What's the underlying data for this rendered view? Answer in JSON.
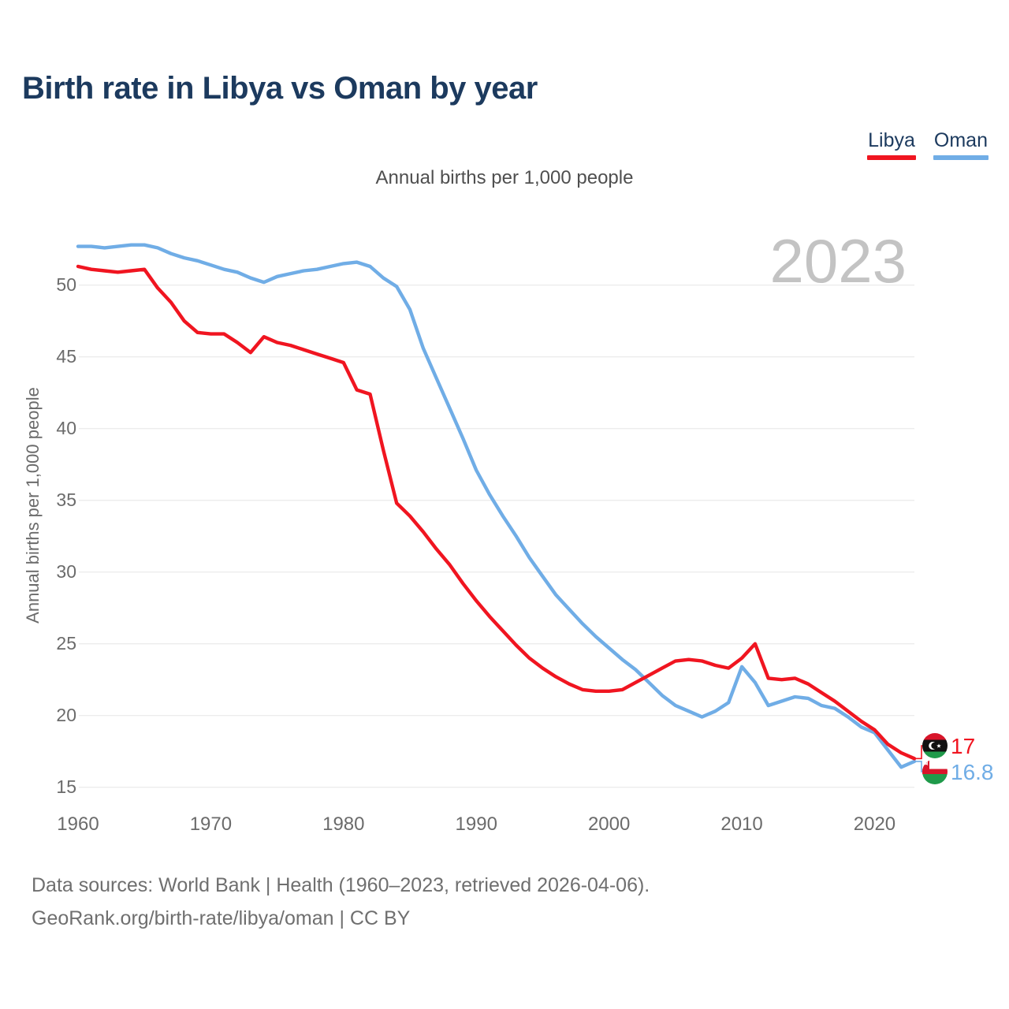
{
  "header": {
    "title": "Birth rate in Libya vs Oman by year"
  },
  "subtitle": "Annual births per 1,000 people",
  "watermark": "2023",
  "legend": {
    "items": [
      {
        "label": "Libya",
        "color": "#f01520"
      },
      {
        "label": "Oman",
        "color": "#70ade6"
      }
    ]
  },
  "footer": {
    "line1": "Data sources: World Bank | Health (1960–2023, retrieved 2026-04-06).",
    "line2": "GeoRank.org/birth-rate/libya/oman | CC BY"
  },
  "chart_data": {
    "type": "line",
    "title": "Birth rate in Libya vs Oman by year",
    "subtitle": "Annual births per 1,000 people",
    "xlabel": "",
    "ylabel": "Annual births per 1,000 people",
    "x_start": 1960,
    "x_end": 2023,
    "xticks": [
      1960,
      1970,
      1980,
      1990,
      2000,
      2010,
      2020
    ],
    "yticks": [
      15,
      20,
      25,
      30,
      35,
      40,
      45,
      50
    ],
    "ylim": [
      14.0,
      53.5
    ],
    "grid": true,
    "legend_position": "top-right",
    "gridline_color": "#ececec",
    "series": [
      {
        "name": "Libya",
        "color": "#f01520",
        "end_label": "17",
        "flag_icon": "libya-flag",
        "values": [
          51.3,
          51.1,
          51.0,
          50.9,
          51.0,
          51.1,
          49.8,
          48.8,
          47.5,
          46.7,
          46.6,
          46.6,
          46.0,
          45.3,
          46.4,
          46.0,
          45.8,
          45.5,
          45.2,
          44.9,
          44.6,
          42.7,
          42.4,
          38.5,
          34.8,
          33.9,
          32.8,
          31.6,
          30.5,
          29.2,
          28.0,
          26.9,
          25.9,
          24.9,
          24.0,
          23.3,
          22.7,
          22.2,
          21.8,
          21.7,
          21.7,
          21.8,
          22.3,
          22.8,
          23.3,
          23.8,
          23.9,
          23.8,
          23.5,
          23.3,
          24.0,
          25.0,
          22.6,
          22.5,
          22.6,
          22.2,
          21.6,
          21.0,
          20.3,
          19.6,
          19.0,
          18.0,
          17.4,
          17.0
        ]
      },
      {
        "name": "Oman",
        "color": "#70ade6",
        "end_label": "16.8",
        "flag_icon": "oman-flag",
        "values": [
          52.7,
          52.7,
          52.6,
          52.7,
          52.8,
          52.8,
          52.6,
          52.2,
          51.9,
          51.7,
          51.4,
          51.1,
          50.9,
          50.5,
          50.2,
          50.6,
          50.8,
          51.0,
          51.1,
          51.3,
          51.5,
          51.6,
          51.3,
          50.5,
          49.9,
          48.3,
          45.6,
          43.5,
          41.4,
          39.3,
          37.1,
          35.4,
          33.9,
          32.5,
          31.0,
          29.7,
          28.4,
          27.4,
          26.4,
          25.5,
          24.7,
          23.9,
          23.2,
          22.3,
          21.4,
          20.7,
          20.3,
          19.9,
          20.3,
          20.9,
          23.4,
          22.3,
          20.7,
          21.0,
          21.3,
          21.2,
          20.7,
          20.5,
          19.9,
          19.2,
          18.8,
          17.6,
          16.4,
          16.8
        ]
      }
    ]
  }
}
